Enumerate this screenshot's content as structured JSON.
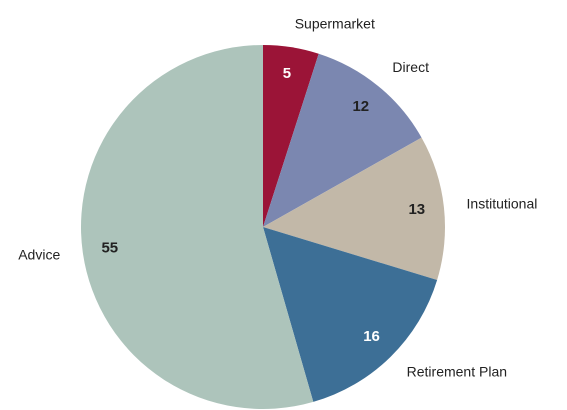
{
  "chart_data": {
    "type": "pie",
    "categories": [
      "Supermarket",
      "Direct",
      "Institutional",
      "Retirement Plan",
      "Advice"
    ],
    "values": [
      5,
      12,
      13,
      16,
      55
    ],
    "colors": [
      "#9b1437",
      "#7b87b0",
      "#c2b8a8",
      "#3d6f96",
      "#adc4bb"
    ]
  }
}
